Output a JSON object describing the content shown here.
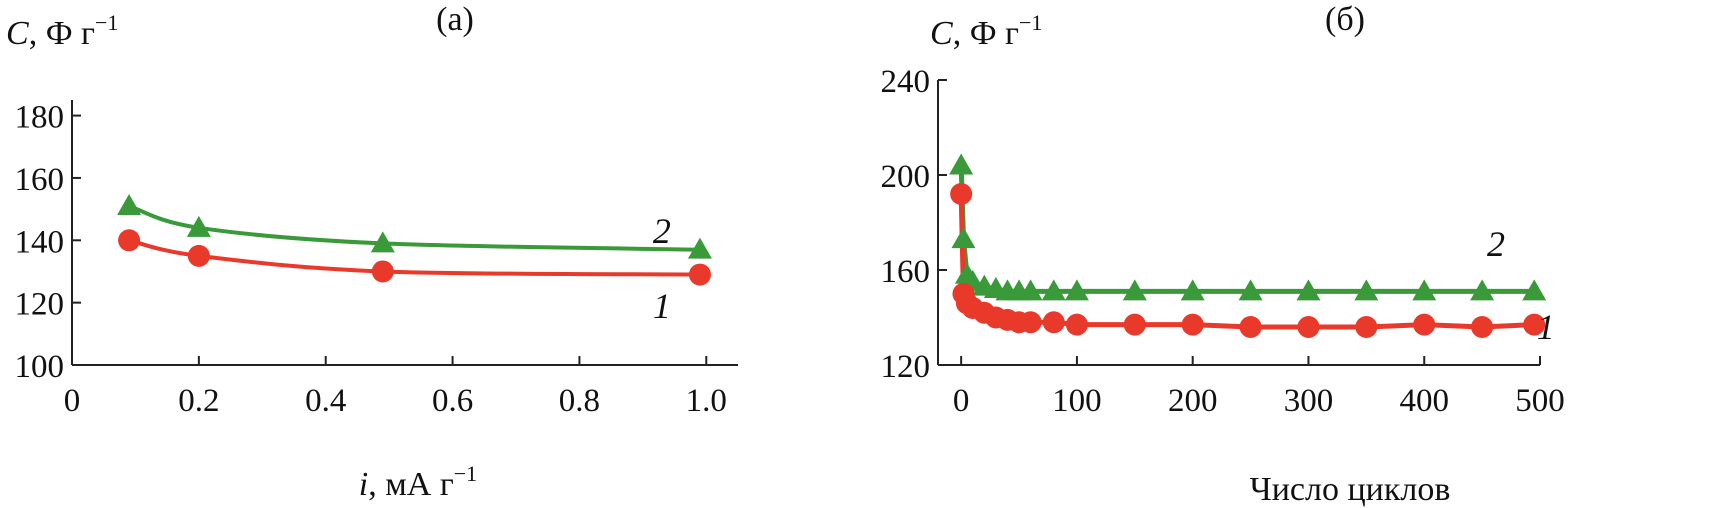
{
  "chart_data": [
    {
      "type": "line",
      "panel_label": "(a)",
      "ylabel_symbol": "C",
      "ylabel_unit": ", Ф г",
      "ylabel_sup": "−1",
      "xlabel_symbol": "i",
      "xlabel_unit": ", мА г",
      "xlabel_sup": "−1",
      "xlim": [
        0,
        1.05
      ],
      "ylim": [
        100,
        185
      ],
      "xticks": [
        0,
        0.2,
        0.4,
        0.6,
        0.8,
        1.0
      ],
      "xtick_labels": [
        "0",
        "0.2",
        "0.4",
        "0.6",
        "0.8",
        "1.0"
      ],
      "yticks": [
        100,
        120,
        140,
        160,
        180
      ],
      "ytick_labels": [
        "100",
        "120",
        "140",
        "160",
        "180"
      ],
      "series": [
        {
          "name": "1",
          "color": "#e8392a",
          "marker": "circle",
          "x": [
            0.09,
            0.2,
            0.49,
            0.99
          ],
          "y": [
            140,
            135,
            130,
            129
          ]
        },
        {
          "name": "2",
          "color": "#3a9a3a",
          "marker": "triangle",
          "x": [
            0.09,
            0.2,
            0.49,
            0.99
          ],
          "y": [
            151,
            144,
            139,
            137
          ]
        }
      ],
      "annotations": [
        {
          "text": "2",
          "x": 0.93,
          "y": 143
        },
        {
          "text": "1",
          "x": 0.93,
          "y": 119
        }
      ]
    },
    {
      "type": "scatter",
      "panel_label": "(б)",
      "ylabel_symbol": "C",
      "ylabel_unit": ", Ф г",
      "ylabel_sup": "−1",
      "xlabel": "Число циклов",
      "xlim": [
        -20,
        500
      ],
      "ylim": [
        120,
        240
      ],
      "xticks": [
        0,
        100,
        200,
        300,
        400,
        500
      ],
      "xtick_labels": [
        "0",
        "100",
        "200",
        "300",
        "400",
        "500"
      ],
      "yticks": [
        120,
        160,
        200,
        240
      ],
      "ytick_labels": [
        "120",
        "160",
        "200",
        "240"
      ],
      "series": [
        {
          "name": "1",
          "color": "#e8392a",
          "marker": "circle",
          "x": [
            0,
            2,
            5,
            10,
            20,
            30,
            40,
            50,
            60,
            80,
            100,
            150,
            200,
            250,
            300,
            350,
            400,
            450,
            495
          ],
          "y": [
            192,
            150,
            146,
            144,
            142,
            140,
            139,
            138,
            138,
            138,
            137,
            137,
            137,
            136,
            136,
            136,
            137,
            136,
            137
          ]
        },
        {
          "name": "2",
          "color": "#3a9a3a",
          "marker": "triangle",
          "x": [
            0,
            2,
            5,
            10,
            20,
            30,
            40,
            50,
            60,
            80,
            100,
            150,
            200,
            250,
            300,
            350,
            400,
            450,
            495
          ],
          "y": [
            204,
            173,
            158,
            155,
            153,
            152,
            151,
            151,
            151,
            151,
            151,
            151,
            151,
            151,
            151,
            151,
            151,
            151,
            151
          ]
        }
      ],
      "annotations": [
        {
          "text": "2",
          "x": 462,
          "y": 171
        },
        {
          "text": "1",
          "x": 505,
          "y": 136
        }
      ]
    }
  ]
}
